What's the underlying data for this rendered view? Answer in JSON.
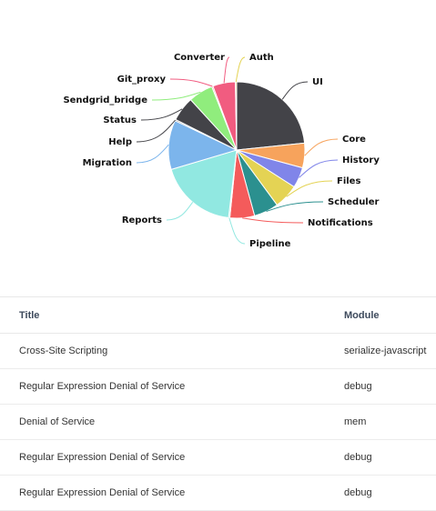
{
  "chart_data": {
    "type": "pie",
    "slices": [
      {
        "label": "UI",
        "value": 24,
        "color": "#434348"
      },
      {
        "label": "Core",
        "value": 6,
        "color": "#f7a35c"
      },
      {
        "label": "History",
        "value": 5,
        "color": "#8085e9"
      },
      {
        "label": "Files",
        "value": 6,
        "color": "#e4d354"
      },
      {
        "label": "Scheduler",
        "value": 6,
        "color": "#2b908f"
      },
      {
        "label": "Notifications",
        "value": 6,
        "color": "#f45b5b"
      },
      {
        "label": "Pipeline",
        "value": 0.3,
        "color": "#91e8e1"
      },
      {
        "label": "Reports",
        "value": 19,
        "color": "#91e8e1"
      },
      {
        "label": "Migration",
        "value": 12,
        "color": "#7cb5ec"
      },
      {
        "label": "Help",
        "value": 0.3,
        "color": "#434348"
      },
      {
        "label": "Status",
        "value": 6,
        "color": "#434348"
      },
      {
        "label": "Sendgrid_bridge",
        "value": 6,
        "color": "#90ed7d"
      },
      {
        "label": "Git_proxy",
        "value": 0.3,
        "color": "#f15c80"
      },
      {
        "label": "Converter",
        "value": 5.5,
        "color": "#f15c80"
      },
      {
        "label": "Auth",
        "value": 0.3,
        "color": "#e4d354"
      }
    ]
  },
  "table": {
    "headers": {
      "title": "Title",
      "module": "Module"
    },
    "rows": [
      {
        "title": "Cross-Site Scripting",
        "module": "serialize-javascript"
      },
      {
        "title": "Regular Expression Denial of Service",
        "module": "debug"
      },
      {
        "title": "Denial of Service",
        "module": "mem"
      },
      {
        "title": "Regular Expression Denial of Service",
        "module": "debug"
      },
      {
        "title": "Regular Expression Denial of Service",
        "module": "debug"
      }
    ]
  }
}
